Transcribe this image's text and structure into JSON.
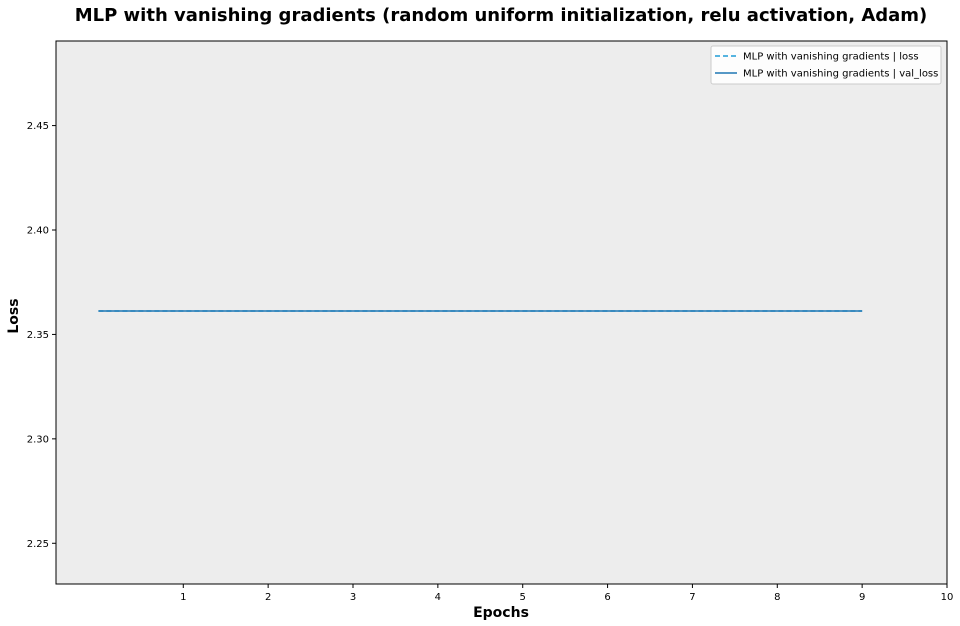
{
  "chart_data": {
    "type": "line",
    "title": "MLP with vanishing gradients (random uniform initialization, relu activation, Adam)",
    "xlabel": "Epochs",
    "ylabel": "Loss",
    "xlim": [
      -0.5,
      10
    ],
    "ylim": [
      2.2305,
      2.4905
    ],
    "xticks": [
      1,
      2,
      3,
      4,
      5,
      6,
      7,
      8,
      9,
      10
    ],
    "yticks": [
      2.25,
      2.3,
      2.35,
      2.4,
      2.45
    ],
    "ytick_labels": [
      "2.25",
      "2.30",
      "2.35",
      "2.40",
      "2.45"
    ],
    "grid": false,
    "legend_position": "top-right",
    "plot_background": "#ededed",
    "series": [
      {
        "name": "MLP with vanishing gradients | loss",
        "style": "dashed",
        "color": "#1f9bd6",
        "x": [
          0,
          1,
          2,
          3,
          4,
          5,
          6,
          7,
          8,
          9
        ],
        "y": [
          2.3612,
          2.3612,
          2.3612,
          2.3612,
          2.3612,
          2.3612,
          2.3612,
          2.3612,
          2.3612,
          2.3612
        ]
      },
      {
        "name": "MLP with vanishing gradients | val_loss",
        "style": "solid",
        "color": "#1f77b4",
        "x": [
          0,
          1,
          2,
          3,
          4,
          5,
          6,
          7,
          8,
          9
        ],
        "y": [
          2.3612,
          2.3612,
          2.3612,
          2.3612,
          2.3612,
          2.3612,
          2.3612,
          2.3612,
          2.3612,
          2.3612
        ]
      }
    ]
  }
}
